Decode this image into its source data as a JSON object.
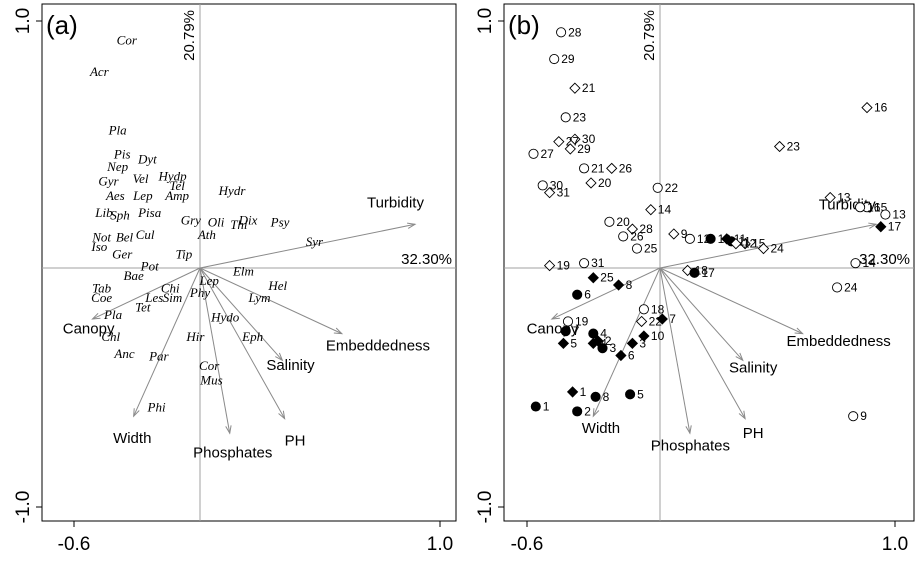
{
  "chart_data": [
    {
      "type": "scatter",
      "panel_label": "(a)",
      "x_ticks": [
        "-0.6",
        "1.0"
      ],
      "y_ticks": [
        "1.0",
        "-1.0"
      ],
      "xlim": [
        -0.6,
        1.0
      ],
      "ylim": [
        -1.0,
        1.0
      ],
      "axis1_pct": "32.30%",
      "axis2_pct": "20.79%",
      "vectors": [
        {
          "label": "Turbidity",
          "end": [
            0.94,
            0.18
          ],
          "lx": 0.73,
          "ly": 0.25
        },
        {
          "label": "Canopy",
          "end": [
            -0.47,
            -0.21
          ],
          "lx": -0.6,
          "ly": -0.27
        },
        {
          "label": "Width",
          "end": [
            -0.29,
            -0.61
          ],
          "lx": -0.38,
          "ly": -0.72
        },
        {
          "label": "Phosphates",
          "end": [
            0.13,
            -0.68
          ],
          "lx": -0.03,
          "ly": -0.78
        },
        {
          "label": "PH",
          "end": [
            0.37,
            -0.62
          ],
          "lx": 0.37,
          "ly": -0.73
        },
        {
          "label": "Salinity",
          "end": [
            0.36,
            -0.38
          ],
          "lx": 0.29,
          "ly": -0.42
        },
        {
          "label": "Embeddedness",
          "end": [
            0.62,
            -0.27
          ],
          "lx": 0.55,
          "ly": -0.34
        }
      ],
      "species": [
        {
          "label": "Cor",
          "x": -0.32,
          "y": 0.92
        },
        {
          "label": "Acr",
          "x": -0.44,
          "y": 0.79
        },
        {
          "label": "Pla",
          "x": -0.36,
          "y": 0.55
        },
        {
          "label": "Pis",
          "x": -0.34,
          "y": 0.45
        },
        {
          "label": "Dyt",
          "x": -0.23,
          "y": 0.43
        },
        {
          "label": "Nep",
          "x": -0.36,
          "y": 0.4
        },
        {
          "label": "Vel",
          "x": -0.26,
          "y": 0.35
        },
        {
          "label": "Hydp",
          "x": -0.12,
          "y": 0.36
        },
        {
          "label": "Tel",
          "x": -0.1,
          "y": 0.32
        },
        {
          "label": "Gyr",
          "x": -0.4,
          "y": 0.34
        },
        {
          "label": "Lep",
          "x": -0.25,
          "y": 0.28
        },
        {
          "label": "Amp",
          "x": -0.1,
          "y": 0.28
        },
        {
          "label": "Aes",
          "x": -0.37,
          "y": 0.28
        },
        {
          "label": "Hydr",
          "x": 0.14,
          "y": 0.3
        },
        {
          "label": "Lib",
          "x": -0.42,
          "y": 0.21
        },
        {
          "label": "Sph",
          "x": -0.35,
          "y": 0.2
        },
        {
          "label": "Pisa",
          "x": -0.22,
          "y": 0.21
        },
        {
          "label": "Gry",
          "x": -0.04,
          "y": 0.18
        },
        {
          "label": "Oli",
          "x": 0.07,
          "y": 0.17
        },
        {
          "label": "Dix",
          "x": 0.21,
          "y": 0.18
        },
        {
          "label": "Thi",
          "x": 0.17,
          "y": 0.16
        },
        {
          "label": "Psy",
          "x": 0.35,
          "y": 0.17
        },
        {
          "label": "Cul",
          "x": -0.24,
          "y": 0.12
        },
        {
          "label": "Ath",
          "x": 0.03,
          "y": 0.12
        },
        {
          "label": "Not",
          "x": -0.43,
          "y": 0.11
        },
        {
          "label": "Bel",
          "x": -0.33,
          "y": 0.11
        },
        {
          "label": "Syr",
          "x": 0.5,
          "y": 0.09
        },
        {
          "label": "Iso",
          "x": -0.44,
          "y": 0.07
        },
        {
          "label": "Ger",
          "x": -0.34,
          "y": 0.04
        },
        {
          "label": "Tip",
          "x": -0.07,
          "y": 0.04
        },
        {
          "label": "Pot",
          "x": -0.22,
          "y": -0.01
        },
        {
          "label": "Elm",
          "x": 0.19,
          "y": -0.03
        },
        {
          "label": "Bae",
          "x": -0.29,
          "y": -0.05
        },
        {
          "label": "Lep",
          "x": 0.04,
          "y": -0.07
        },
        {
          "label": "Hel",
          "x": 0.34,
          "y": -0.09
        },
        {
          "label": "Tab",
          "x": -0.43,
          "y": -0.1
        },
        {
          "label": "Chi",
          "x": -0.13,
          "y": -0.1
        },
        {
          "label": "Phy",
          "x": 0.0,
          "y": -0.12
        },
        {
          "label": "Lym",
          "x": 0.26,
          "y": -0.14
        },
        {
          "label": "Coe",
          "x": -0.43,
          "y": -0.14
        },
        {
          "label": "Les",
          "x": -0.2,
          "y": -0.14
        },
        {
          "label": "Sim",
          "x": -0.12,
          "y": -0.14
        },
        {
          "label": "Tet",
          "x": -0.25,
          "y": -0.18
        },
        {
          "label": "Pla",
          "x": -0.38,
          "y": -0.21
        },
        {
          "label": "Hydo",
          "x": 0.11,
          "y": -0.22
        },
        {
          "label": "Chl",
          "x": -0.39,
          "y": -0.3
        },
        {
          "label": "Eph",
          "x": 0.23,
          "y": -0.3
        },
        {
          "label": "Hir",
          "x": -0.02,
          "y": -0.3
        },
        {
          "label": "Anc",
          "x": -0.33,
          "y": -0.37
        },
        {
          "label": "Par",
          "x": -0.18,
          "y": -0.38
        },
        {
          "label": "Cor",
          "x": 0.04,
          "y": -0.42
        },
        {
          "label": "Mus",
          "x": 0.05,
          "y": -0.48
        },
        {
          "label": "Phi",
          "x": -0.19,
          "y": -0.59
        }
      ]
    },
    {
      "type": "scatter",
      "panel_label": "(b)",
      "x_ticks": [
        "-0.6",
        "1.0"
      ],
      "y_ticks": [
        "1.0",
        "-1.0"
      ],
      "xlim": [
        -0.6,
        1.0
      ],
      "ylim": [
        -1.0,
        1.0
      ],
      "axis1_pct": "32.30%",
      "axis2_pct": "20.79%",
      "vectors": [
        {
          "label": "Turbidity",
          "end": [
            0.94,
            0.18
          ],
          "lx": 0.69,
          "ly": 0.24
        },
        {
          "label": "Canopy",
          "end": [
            -0.47,
            -0.21
          ],
          "lx": -0.58,
          "ly": -0.27
        },
        {
          "label": "Width",
          "end": [
            -0.29,
            -0.61
          ],
          "lx": -0.34,
          "ly": -0.68
        },
        {
          "label": "Phosphates",
          "end": [
            0.13,
            -0.68
          ],
          "lx": -0.04,
          "ly": -0.75
        },
        {
          "label": "PH",
          "end": [
            0.37,
            -0.62
          ],
          "lx": 0.36,
          "ly": -0.7
        },
        {
          "label": "Salinity",
          "end": [
            0.36,
            -0.38
          ],
          "lx": 0.3,
          "ly": -0.43
        },
        {
          "label": "Embeddedness",
          "end": [
            0.62,
            -0.27
          ],
          "lx": 0.55,
          "ly": -0.32
        }
      ],
      "sites": [
        {
          "n": "28",
          "x": -0.43,
          "y": 0.97,
          "m": "co"
        },
        {
          "n": "29",
          "x": -0.46,
          "y": 0.86,
          "m": "co"
        },
        {
          "n": "21",
          "x": -0.37,
          "y": 0.74,
          "m": "do"
        },
        {
          "n": "16",
          "x": 0.9,
          "y": 0.66,
          "m": "do"
        },
        {
          "n": "23",
          "x": -0.41,
          "y": 0.62,
          "m": "co"
        },
        {
          "n": "30",
          "x": -0.37,
          "y": 0.53,
          "m": "do"
        },
        {
          "n": "27",
          "x": -0.44,
          "y": 0.52,
          "m": "do"
        },
        {
          "n": "29",
          "x": -0.39,
          "y": 0.49,
          "m": "do"
        },
        {
          "n": "23",
          "x": 0.52,
          "y": 0.5,
          "m": "do"
        },
        {
          "n": "27",
          "x": -0.55,
          "y": 0.47,
          "m": "co"
        },
        {
          "n": "26",
          "x": -0.21,
          "y": 0.41,
          "m": "do"
        },
        {
          "n": "21",
          "x": -0.33,
          "y": 0.41,
          "m": "co"
        },
        {
          "n": "20",
          "x": -0.3,
          "y": 0.35,
          "m": "do"
        },
        {
          "n": "22",
          "x": -0.01,
          "y": 0.33,
          "m": "co"
        },
        {
          "n": "30",
          "x": -0.51,
          "y": 0.34,
          "m": "co"
        },
        {
          "n": "31",
          "x": -0.48,
          "y": 0.31,
          "m": "do"
        },
        {
          "n": "13",
          "x": 0.74,
          "y": 0.29,
          "m": "do"
        },
        {
          "n": "15",
          "x": 0.9,
          "y": 0.25,
          "m": "co"
        },
        {
          "n": "16",
          "x": 0.87,
          "y": 0.25,
          "m": "co"
        },
        {
          "n": "14",
          "x": -0.04,
          "y": 0.24,
          "m": "do"
        },
        {
          "n": "13",
          "x": 0.98,
          "y": 0.22,
          "m": "co"
        },
        {
          "n": "28",
          "x": -0.12,
          "y": 0.16,
          "m": "do"
        },
        {
          "n": "20",
          "x": -0.22,
          "y": 0.19,
          "m": "co"
        },
        {
          "n": "26",
          "x": -0.16,
          "y": 0.13,
          "m": "co"
        },
        {
          "n": "9",
          "x": 0.06,
          "y": 0.14,
          "m": "do"
        },
        {
          "n": "12",
          "x": 0.13,
          "y": 0.12,
          "m": "co"
        },
        {
          "n": "10",
          "x": 0.22,
          "y": 0.12,
          "m": "cf"
        },
        {
          "n": "11",
          "x": 0.29,
          "y": 0.12,
          "m": "df"
        },
        {
          "n": "15",
          "x": 0.37,
          "y": 0.1,
          "m": "do"
        },
        {
          "n": "25",
          "x": -0.1,
          "y": 0.08,
          "m": "co"
        },
        {
          "n": "24",
          "x": 0.45,
          "y": 0.08,
          "m": "do"
        },
        {
          "n": "17",
          "x": 0.96,
          "y": 0.17,
          "m": "df"
        },
        {
          "n": "11",
          "x": 0.31,
          "y": 0.11,
          "m": "cf"
        },
        {
          "n": "12",
          "x": 0.33,
          "y": 0.1,
          "m": "do"
        },
        {
          "n": "19",
          "x": -0.48,
          "y": 0.01,
          "m": "do"
        },
        {
          "n": "31",
          "x": -0.33,
          "y": 0.02,
          "m": "co"
        },
        {
          "n": "14",
          "x": 0.85,
          "y": 0.02,
          "m": "co"
        },
        {
          "n": "25",
          "x": -0.29,
          "y": -0.04,
          "m": "df"
        },
        {
          "n": "18",
          "x": 0.12,
          "y": -0.01,
          "m": "do"
        },
        {
          "n": "17",
          "x": 0.15,
          "y": -0.02,
          "m": "cf"
        },
        {
          "n": "6",
          "x": -0.36,
          "y": -0.11,
          "m": "cf"
        },
        {
          "n": "8",
          "x": -0.18,
          "y": -0.07,
          "m": "df"
        },
        {
          "n": "24",
          "x": 0.77,
          "y": -0.08,
          "m": "co"
        },
        {
          "n": "19",
          "x": -0.4,
          "y": -0.22,
          "m": "co"
        },
        {
          "n": "18",
          "x": -0.07,
          "y": -0.17,
          "m": "co"
        },
        {
          "n": "22",
          "x": -0.08,
          "y": -0.22,
          "m": "do"
        },
        {
          "n": "7",
          "x": 0.01,
          "y": -0.21,
          "m": "df"
        },
        {
          "n": "4",
          "x": -0.29,
          "y": -0.27,
          "m": "cf"
        },
        {
          "n": "7",
          "x": -0.41,
          "y": -0.26,
          "m": "cf"
        },
        {
          "n": "2",
          "x": -0.27,
          "y": -0.3,
          "m": "df"
        },
        {
          "n": "10",
          "x": -0.07,
          "y": -0.28,
          "m": "df"
        },
        {
          "n": "5",
          "x": -0.42,
          "y": -0.31,
          "m": "df"
        },
        {
          "n": "4",
          "x": -0.29,
          "y": -0.31,
          "m": "df"
        },
        {
          "n": "3",
          "x": -0.12,
          "y": -0.31,
          "m": "df"
        },
        {
          "n": "3",
          "x": -0.25,
          "y": -0.33,
          "m": "cf"
        },
        {
          "n": "6",
          "x": -0.17,
          "y": -0.36,
          "m": "df"
        },
        {
          "n": "1",
          "x": -0.38,
          "y": -0.51,
          "m": "df"
        },
        {
          "n": "8",
          "x": -0.28,
          "y": -0.53,
          "m": "cf"
        },
        {
          "n": "5",
          "x": -0.13,
          "y": -0.52,
          "m": "cf"
        },
        {
          "n": "1",
          "x": -0.54,
          "y": -0.57,
          "m": "cf"
        },
        {
          "n": "2",
          "x": -0.36,
          "y": -0.59,
          "m": "cf"
        },
        {
          "n": "9",
          "x": 0.84,
          "y": -0.61,
          "m": "co"
        }
      ]
    }
  ]
}
